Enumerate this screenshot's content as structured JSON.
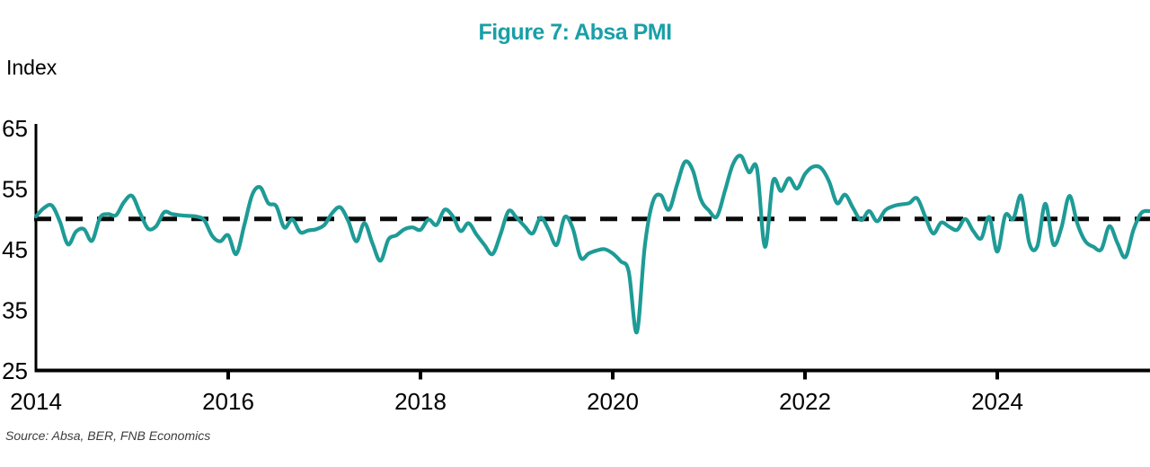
{
  "title": "Figure 7: Absa PMI",
  "source_note": "Source: Absa, BER, FNB Economics",
  "colors": {
    "title": "#1A9FA8",
    "line": "#1E9B96",
    "axis": "#000000",
    "reference_line": "#0a0a0a",
    "tick_labels": "#000000",
    "source_text": "#3d3d3d",
    "background": "#ffffff"
  },
  "chart_data": {
    "type": "line",
    "title": "Figure 7: Absa PMI",
    "xlabel": "",
    "ylabel": "Index",
    "ylim": [
      25,
      65
    ],
    "y_ticks": [
      25,
      35,
      45,
      55,
      65
    ],
    "x_ticks": [
      2014,
      2016,
      2018,
      2020,
      2022,
      2024
    ],
    "x_range_years": [
      2014.0,
      2025.67
    ],
    "grid": false,
    "legend": false,
    "reference_line": {
      "value": 50,
      "style": "dashed"
    },
    "series": [
      {
        "name": "Absa PMI",
        "frequency": "monthly",
        "start_month": "2014-01",
        "end_month": "2025-08",
        "values": [
          50.4,
          51.8,
          52.2,
          49.5,
          45.8,
          47.9,
          48.3,
          46.4,
          50.2,
          50.8,
          50.6,
          52.8,
          53.8,
          51.0,
          48.4,
          48.8,
          51.1,
          50.8,
          50.6,
          50.5,
          50.4,
          49.8,
          47.2,
          46.3,
          47.3,
          44.2,
          48.9,
          54.0,
          55.2,
          52.6,
          52.1,
          48.6,
          49.9,
          47.8,
          48.1,
          48.3,
          49.0,
          51.0,
          51.9,
          49.6,
          46.3,
          49.3,
          46.0,
          43.1,
          46.6,
          47.3,
          48.3,
          48.6,
          48.2,
          49.9,
          49.0,
          51.5,
          50.5,
          48.0,
          49.3,
          47.4,
          45.7,
          44.2,
          47.5,
          51.3,
          50.2,
          48.8,
          47.6,
          50.2,
          48.2,
          45.7,
          50.3,
          48.5,
          43.6,
          44.3,
          44.8,
          45.0,
          44.3,
          43.0,
          41.3,
          31.3,
          45.5,
          52.8,
          53.9,
          51.5,
          55.5,
          59.4,
          58.0,
          53.2,
          51.4,
          50.4,
          54.6,
          59.0,
          60.4,
          57.7,
          58.3,
          45.4,
          56.2,
          54.6,
          56.7,
          55.0,
          57.4,
          58.6,
          58.4,
          56.2,
          52.6,
          54.0,
          51.8,
          49.8,
          51.3,
          49.6,
          51.4,
          52.1,
          52.4,
          52.6,
          53.4,
          50.4,
          47.6,
          49.4,
          48.7,
          48.2,
          50.0,
          48.0,
          46.8,
          50.3,
          44.6,
          50.6,
          50.0,
          53.8,
          46.0,
          45.5,
          52.5,
          45.8,
          48.5,
          53.8,
          49.2,
          46.3,
          45.4,
          45.0,
          48.8,
          46.0,
          43.7,
          48.2,
          51.0,
          51.3
        ]
      }
    ]
  }
}
